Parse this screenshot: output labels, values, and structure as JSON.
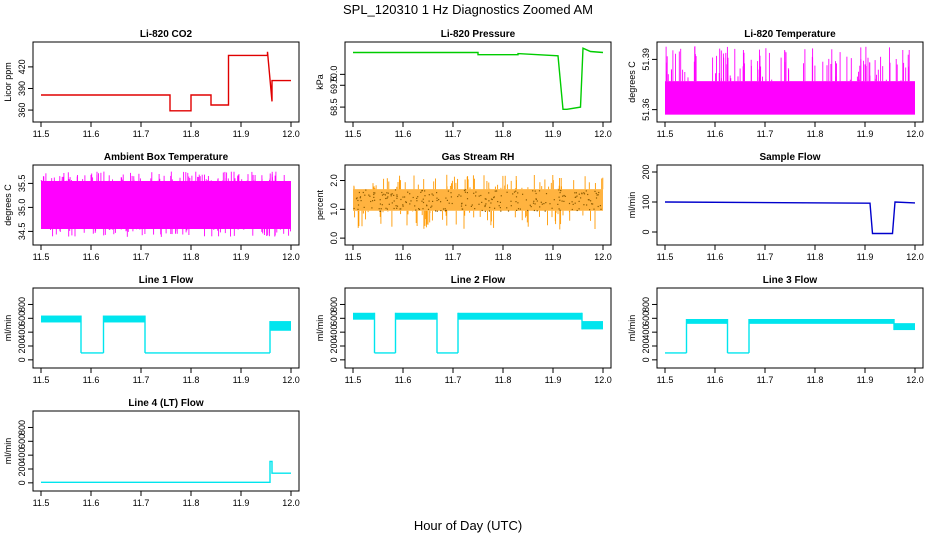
{
  "figure": {
    "title": "SPL_120310  1 Hz Diagnostics Zoomed AM",
    "xlabel": "Hour of Day (UTC)"
  },
  "chart_data": [
    {
      "type": "line",
      "title": "Li-820 CO2",
      "ylabel": "Licor ppm",
      "color": "#e00000",
      "xlim": [
        11.5,
        12.0
      ],
      "xticks": [
        11.5,
        11.6,
        11.7,
        11.8,
        11.9,
        12.0
      ],
      "ylim": [
        349,
        449
      ],
      "yticks": [
        360,
        390,
        420
      ],
      "ytick_labels": [
        "360",
        "390",
        "420"
      ],
      "x": [
        11.5,
        11.758,
        11.758,
        11.8,
        11.8,
        11.84,
        11.84,
        11.875,
        11.875,
        11.953,
        11.953,
        11.962,
        11.962,
        12.0
      ],
      "y": [
        381,
        381,
        359,
        359,
        381,
        381,
        367,
        367,
        436,
        436,
        441,
        372,
        401,
        401
      ],
      "style": "line"
    },
    {
      "type": "line",
      "title": "Li-820 Pressure",
      "ylabel": "kPa",
      "color": "#00cc00",
      "xlim": [
        11.5,
        12.0
      ],
      "xticks": [
        11.5,
        11.6,
        11.7,
        11.8,
        11.9,
        12.0
      ],
      "ylim": [
        68.0,
        71.3
      ],
      "yticks": [
        68.5,
        69.5,
        70.0
      ],
      "ytick_labels": [
        "68.5",
        "69.5",
        "70.0"
      ],
      "x": [
        11.5,
        11.75,
        11.75,
        11.83,
        11.83,
        11.91,
        11.92,
        11.928,
        11.955,
        11.96,
        11.975,
        12.0
      ],
      "y": [
        71.0,
        71.0,
        70.9,
        70.9,
        70.95,
        70.85,
        68.4,
        68.4,
        68.5,
        71.2,
        71.05,
        71.0
      ],
      "style": "line"
    },
    {
      "type": "line",
      "title": "Li-820 Temperature",
      "ylabel": "degrees C",
      "color": "#ff00ff",
      "xlim": [
        11.5,
        12.0
      ],
      "xticks": [
        11.5,
        11.6,
        11.7,
        11.8,
        11.9,
        12.0
      ],
      "ylim": [
        51.355,
        51.398
      ],
      "yticks": [
        51.36,
        51.39
      ],
      "ytick_labels": [
        "51.36",
        "51.39"
      ],
      "band_low": 51.357,
      "band_high": 51.377,
      "spike_high": 51.398,
      "style": "band"
    },
    {
      "type": "line",
      "title": "Ambient Box Temperature",
      "ylabel": "degrees C",
      "color": "#ff00ff",
      "xlim": [
        11.5,
        12.0
      ],
      "xticks": [
        11.5,
        11.6,
        11.7,
        11.8,
        11.9,
        12.0
      ],
      "ylim": [
        34.3,
        35.8
      ],
      "yticks": [
        34.5,
        35.0,
        35.5
      ],
      "ytick_labels": [
        "34.5",
        "35.0",
        "35.5"
      ],
      "band_low": 34.55,
      "band_high": 35.55,
      "spike_high": 35.75,
      "spike_low": 34.38,
      "style": "band"
    },
    {
      "type": "scatter",
      "title": "Gas Stream RH",
      "ylabel": "percent",
      "color": "#ff9900",
      "xlim": [
        11.5,
        12.0
      ],
      "xticks": [
        11.5,
        11.6,
        11.7,
        11.8,
        11.9,
        12.0
      ],
      "ylim": [
        -0.1,
        2.4
      ],
      "yticks": [
        0.0,
        1.0,
        2.0
      ],
      "ytick_labels": [
        "0.0",
        "1.0",
        "2.0"
      ],
      "band_low": 0.95,
      "band_high": 1.7,
      "spike_high": 2.2,
      "spike_low": 0.3,
      "style": "band"
    },
    {
      "type": "line",
      "title": "Sample Flow",
      "ylabel": "ml/min",
      "color": "#0000cc",
      "xlim": [
        11.5,
        12.0
      ],
      "xticks": [
        11.5,
        11.6,
        11.7,
        11.8,
        11.9,
        12.0
      ],
      "ylim": [
        -30,
        210
      ],
      "yticks": [
        0,
        100,
        200
      ],
      "ytick_labels": [
        "0",
        "100",
        "200"
      ],
      "x": [
        11.5,
        11.91,
        11.915,
        11.955,
        11.96,
        12.0
      ],
      "y": [
        100,
        96,
        -5,
        -5,
        100,
        97
      ],
      "style": "line"
    },
    {
      "type": "line",
      "title": "Line 1 Flow",
      "ylabel": "ml/min",
      "color": "#00e5ee",
      "xlim": [
        11.5,
        12.0
      ],
      "xticks": [
        11.5,
        11.6,
        11.7,
        11.8,
        11.9,
        12.0
      ],
      "ylim": [
        -60,
        980
      ],
      "yticks": [
        0,
        200,
        400,
        600,
        800
      ],
      "ytick_labels": [
        "0",
        "200",
        "400",
        "600",
        "800"
      ],
      "segments": [
        {
          "x0": 11.5,
          "x1": 11.58,
          "lo": 540,
          "hi": 640
        },
        {
          "x0": 11.58,
          "x1": 11.625,
          "lo": 100,
          "hi": 100
        },
        {
          "x0": 11.625,
          "x1": 11.708,
          "lo": 540,
          "hi": 640
        },
        {
          "x0": 11.708,
          "x1": 11.958,
          "lo": 100,
          "hi": 100
        },
        {
          "x0": 11.958,
          "x1": 12.0,
          "lo": 420,
          "hi": 560
        }
      ],
      "style": "segments"
    },
    {
      "type": "line",
      "title": "Line 2 Flow",
      "ylabel": "ml/min",
      "color": "#00e5ee",
      "xlim": [
        11.5,
        12.0
      ],
      "xticks": [
        11.5,
        11.6,
        11.7,
        11.8,
        11.9,
        12.0
      ],
      "ylim": [
        -60,
        980
      ],
      "yticks": [
        0,
        200,
        400,
        600,
        800
      ],
      "ytick_labels": [
        "0",
        "200",
        "400",
        "600",
        "800"
      ],
      "segments": [
        {
          "x0": 11.5,
          "x1": 11.543,
          "lo": 580,
          "hi": 680
        },
        {
          "x0": 11.543,
          "x1": 11.585,
          "lo": 100,
          "hi": 100
        },
        {
          "x0": 11.585,
          "x1": 11.668,
          "lo": 580,
          "hi": 680
        },
        {
          "x0": 11.668,
          "x1": 11.71,
          "lo": 100,
          "hi": 100
        },
        {
          "x0": 11.71,
          "x1": 11.958,
          "lo": 580,
          "hi": 680
        },
        {
          "x0": 11.958,
          "x1": 12.0,
          "lo": 440,
          "hi": 560
        }
      ],
      "style": "segments"
    },
    {
      "type": "line",
      "title": "Line 3 Flow",
      "ylabel": "ml/min",
      "color": "#00e5ee",
      "xlim": [
        11.5,
        12.0
      ],
      "xticks": [
        11.5,
        11.6,
        11.7,
        11.8,
        11.9,
        12.0
      ],
      "ylim": [
        -60,
        980
      ],
      "yticks": [
        0,
        200,
        400,
        600,
        800
      ],
      "ytick_labels": [
        "0",
        "200",
        "400",
        "600",
        "800"
      ],
      "segments": [
        {
          "x0": 11.5,
          "x1": 11.543,
          "lo": 100,
          "hi": 100
        },
        {
          "x0": 11.543,
          "x1": 11.625,
          "lo": 520,
          "hi": 590
        },
        {
          "x0": 11.625,
          "x1": 11.668,
          "lo": 100,
          "hi": 100
        },
        {
          "x0": 11.668,
          "x1": 11.958,
          "lo": 520,
          "hi": 590
        },
        {
          "x0": 11.958,
          "x1": 12.0,
          "lo": 430,
          "hi": 530
        }
      ],
      "style": "segments"
    },
    {
      "type": "line",
      "title": "Line 4 (LT) Flow",
      "ylabel": "ml/min",
      "color": "#00e5ee",
      "xlim": [
        11.5,
        12.0
      ],
      "xticks": [
        11.5,
        11.6,
        11.7,
        11.8,
        11.9,
        12.0
      ],
      "ylim": [
        -60,
        980
      ],
      "yticks": [
        0,
        200,
        400,
        600,
        800
      ],
      "ytick_labels": [
        "0",
        "200",
        "400",
        "600",
        "800"
      ],
      "x": [
        11.5,
        11.958,
        11.958,
        11.962,
        11.962,
        12.0
      ],
      "y": [
        8,
        8,
        310,
        310,
        140,
        140
      ],
      "style": "line"
    }
  ]
}
